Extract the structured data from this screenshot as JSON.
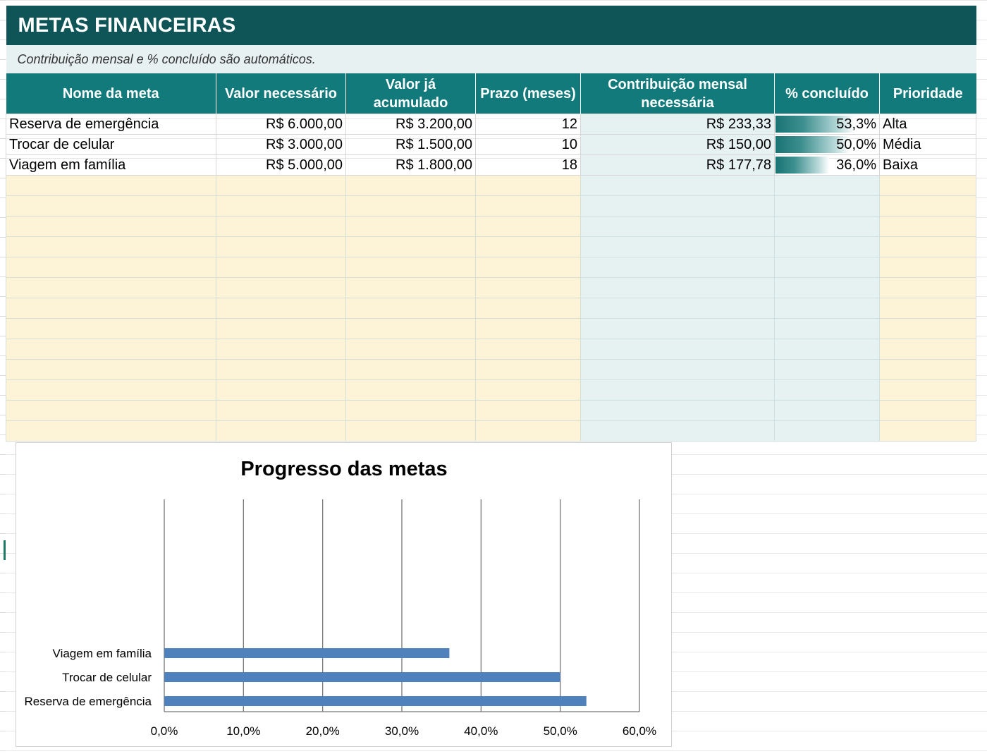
{
  "sheet": {
    "title": "METAS FINANCEIRAS",
    "subtitle": "Contribuição mensal e % concluído são automáticos.",
    "columns": [
      "Nome da meta",
      "Valor necessário",
      "Valor já acumulado",
      "Prazo (meses)",
      "Contribuição mensal necessária",
      "% concluído",
      "Prioridade"
    ],
    "rows": [
      {
        "name": "Reserva de emergência",
        "needed": "R$ 6.000,00",
        "accumulated": "R$ 3.200,00",
        "months": "12",
        "monthly": "R$ 233,33",
        "pct_text": "53,3%",
        "pct": 0.533,
        "priority": "Alta"
      },
      {
        "name": "Trocar de celular",
        "needed": "R$ 3.000,00",
        "accumulated": "R$ 1.500,00",
        "months": "10",
        "monthly": "R$ 150,00",
        "pct_text": "50,0%",
        "pct": 0.5,
        "priority": "Média"
      },
      {
        "name": "Viagem em família",
        "needed": "R$ 5.000,00",
        "accumulated": "R$ 1.800,00",
        "months": "18",
        "monthly": "R$ 177,78",
        "pct_text": "36,0%",
        "pct": 0.36,
        "priority": "Baixa"
      }
    ],
    "colors": {
      "title_bg": "#0f5457",
      "header_bg": "#137a7c",
      "subtitle_bg": "#e7f1f2",
      "input_fill": "#fdf4d7",
      "calc_fill": "#e6f1f2",
      "bar_color": "#4f81bd"
    }
  },
  "chart_data": {
    "type": "bar",
    "orientation": "horizontal",
    "title": "Progresso das metas",
    "categories": [
      "Reserva de emergência",
      "Trocar de celular",
      "Viagem em família"
    ],
    "values": [
      0.533,
      0.5,
      0.36
    ],
    "xlim": [
      0,
      0.6
    ],
    "x_ticks": [
      "0,0%",
      "10,0%",
      "20,0%",
      "30,0%",
      "40,0%",
      "50,0%",
      "60,0%"
    ],
    "grid": "vertical",
    "legend": "none",
    "color": "#4f81bd"
  }
}
